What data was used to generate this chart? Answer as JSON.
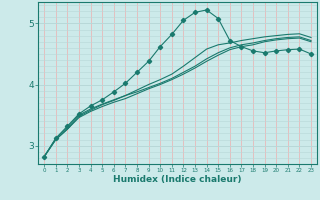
{
  "xlabel": "Humidex (Indice chaleur)",
  "bg_color": "#cceaea",
  "grid_color_h": "#b8d8d8",
  "grid_color_v": "#e8b8b8",
  "line_color": "#1a7a6e",
  "xlim": [
    -0.5,
    23.5
  ],
  "ylim": [
    2.7,
    5.35
  ],
  "yticks": [
    3,
    4,
    5
  ],
  "xticks": [
    0,
    1,
    2,
    3,
    4,
    5,
    6,
    7,
    8,
    9,
    10,
    11,
    12,
    13,
    14,
    15,
    16,
    17,
    18,
    19,
    20,
    21,
    22,
    23
  ],
  "lines": [
    {
      "x": [
        0,
        1,
        2,
        3,
        4,
        5,
        6,
        7,
        8,
        9,
        10,
        11,
        12,
        13,
        14,
        15,
        16,
        17,
        18,
        19,
        20,
        21,
        22,
        23
      ],
      "y": [
        2.82,
        3.12,
        3.3,
        3.5,
        3.6,
        3.68,
        3.75,
        3.82,
        3.88,
        3.95,
        4.02,
        4.1,
        4.2,
        4.3,
        4.42,
        4.52,
        4.6,
        4.65,
        4.68,
        4.72,
        4.75,
        4.77,
        4.78,
        4.72
      ],
      "marker": false
    },
    {
      "x": [
        0,
        1,
        2,
        3,
        4,
        5,
        6,
        7,
        8,
        9,
        10,
        11,
        12,
        13,
        14,
        15,
        16,
        17,
        18,
        19,
        20,
        21,
        22,
        23
      ],
      "y": [
        2.82,
        3.1,
        3.27,
        3.46,
        3.56,
        3.64,
        3.71,
        3.77,
        3.85,
        3.93,
        4.0,
        4.08,
        4.17,
        4.27,
        4.38,
        4.48,
        4.57,
        4.62,
        4.65,
        4.7,
        4.73,
        4.75,
        4.76,
        4.7
      ],
      "marker": false
    },
    {
      "x": [
        0,
        1,
        2,
        3,
        4,
        5,
        6,
        7,
        8,
        9,
        10,
        11,
        12,
        13,
        14,
        15,
        16,
        17,
        18,
        19,
        20,
        21,
        22,
        23
      ],
      "y": [
        2.82,
        3.1,
        3.27,
        3.48,
        3.58,
        3.67,
        3.74,
        3.82,
        3.91,
        4.0,
        4.08,
        4.17,
        4.3,
        4.44,
        4.58,
        4.65,
        4.68,
        4.72,
        4.75,
        4.78,
        4.8,
        4.82,
        4.83,
        4.77
      ],
      "marker": false
    },
    {
      "x": [
        0,
        1,
        2,
        3,
        4,
        5,
        6,
        7,
        8,
        9,
        10,
        11,
        12,
        13,
        14,
        15,
        16,
        17,
        18,
        19,
        20,
        21,
        22,
        23
      ],
      "y": [
        2.82,
        3.12,
        3.32,
        3.52,
        3.65,
        3.75,
        3.88,
        4.02,
        4.2,
        4.38,
        4.62,
        4.82,
        5.05,
        5.18,
        5.22,
        5.08,
        4.72,
        4.62,
        4.55,
        4.52,
        4.55,
        4.57,
        4.58,
        4.5
      ],
      "marker": true
    }
  ]
}
